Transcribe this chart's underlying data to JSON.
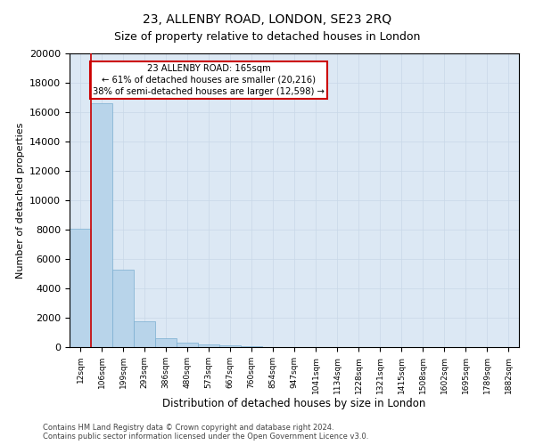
{
  "title": "23, ALLENBY ROAD, LONDON, SE23 2RQ",
  "subtitle": "Size of property relative to detached houses in London",
  "xlabel": "Distribution of detached houses by size in London",
  "ylabel": "Number of detached properties",
  "bin_labels": [
    "12sqm",
    "106sqm",
    "199sqm",
    "293sqm",
    "386sqm",
    "480sqm",
    "573sqm",
    "667sqm",
    "760sqm",
    "854sqm",
    "947sqm",
    "1041sqm",
    "1134sqm",
    "1228sqm",
    "1321sqm",
    "1415sqm",
    "1508sqm",
    "1602sqm",
    "1695sqm",
    "1789sqm",
    "1882sqm"
  ],
  "bar_heights": [
    8050,
    16620,
    5250,
    1750,
    620,
    285,
    195,
    135,
    55,
    0,
    0,
    0,
    0,
    0,
    0,
    0,
    0,
    0,
    0,
    0,
    0
  ],
  "bar_color": "#b8d4ea",
  "bar_edge_color": "#7aaed0",
  "vline_x": 0.5,
  "vline_color": "#cc0000",
  "annotation_text": "23 ALLENBY ROAD: 165sqm\n← 61% of detached houses are smaller (20,216)\n38% of semi-detached houses are larger (12,598) →",
  "annotation_box_color": "#ffffff",
  "annotation_box_edge": "#cc0000",
  "ylim": [
    0,
    20000
  ],
  "yticks": [
    0,
    2000,
    4000,
    6000,
    8000,
    10000,
    12000,
    14000,
    16000,
    18000,
    20000
  ],
  "footer_line1": "Contains HM Land Registry data © Crown copyright and database right 2024.",
  "footer_line2": "Contains public sector information licensed under the Open Government Licence v3.0.",
  "grid_color": "#c8d8e8",
  "bg_color": "#dce8f4",
  "fig_width": 6.0,
  "fig_height": 5.0,
  "fig_dpi": 100
}
